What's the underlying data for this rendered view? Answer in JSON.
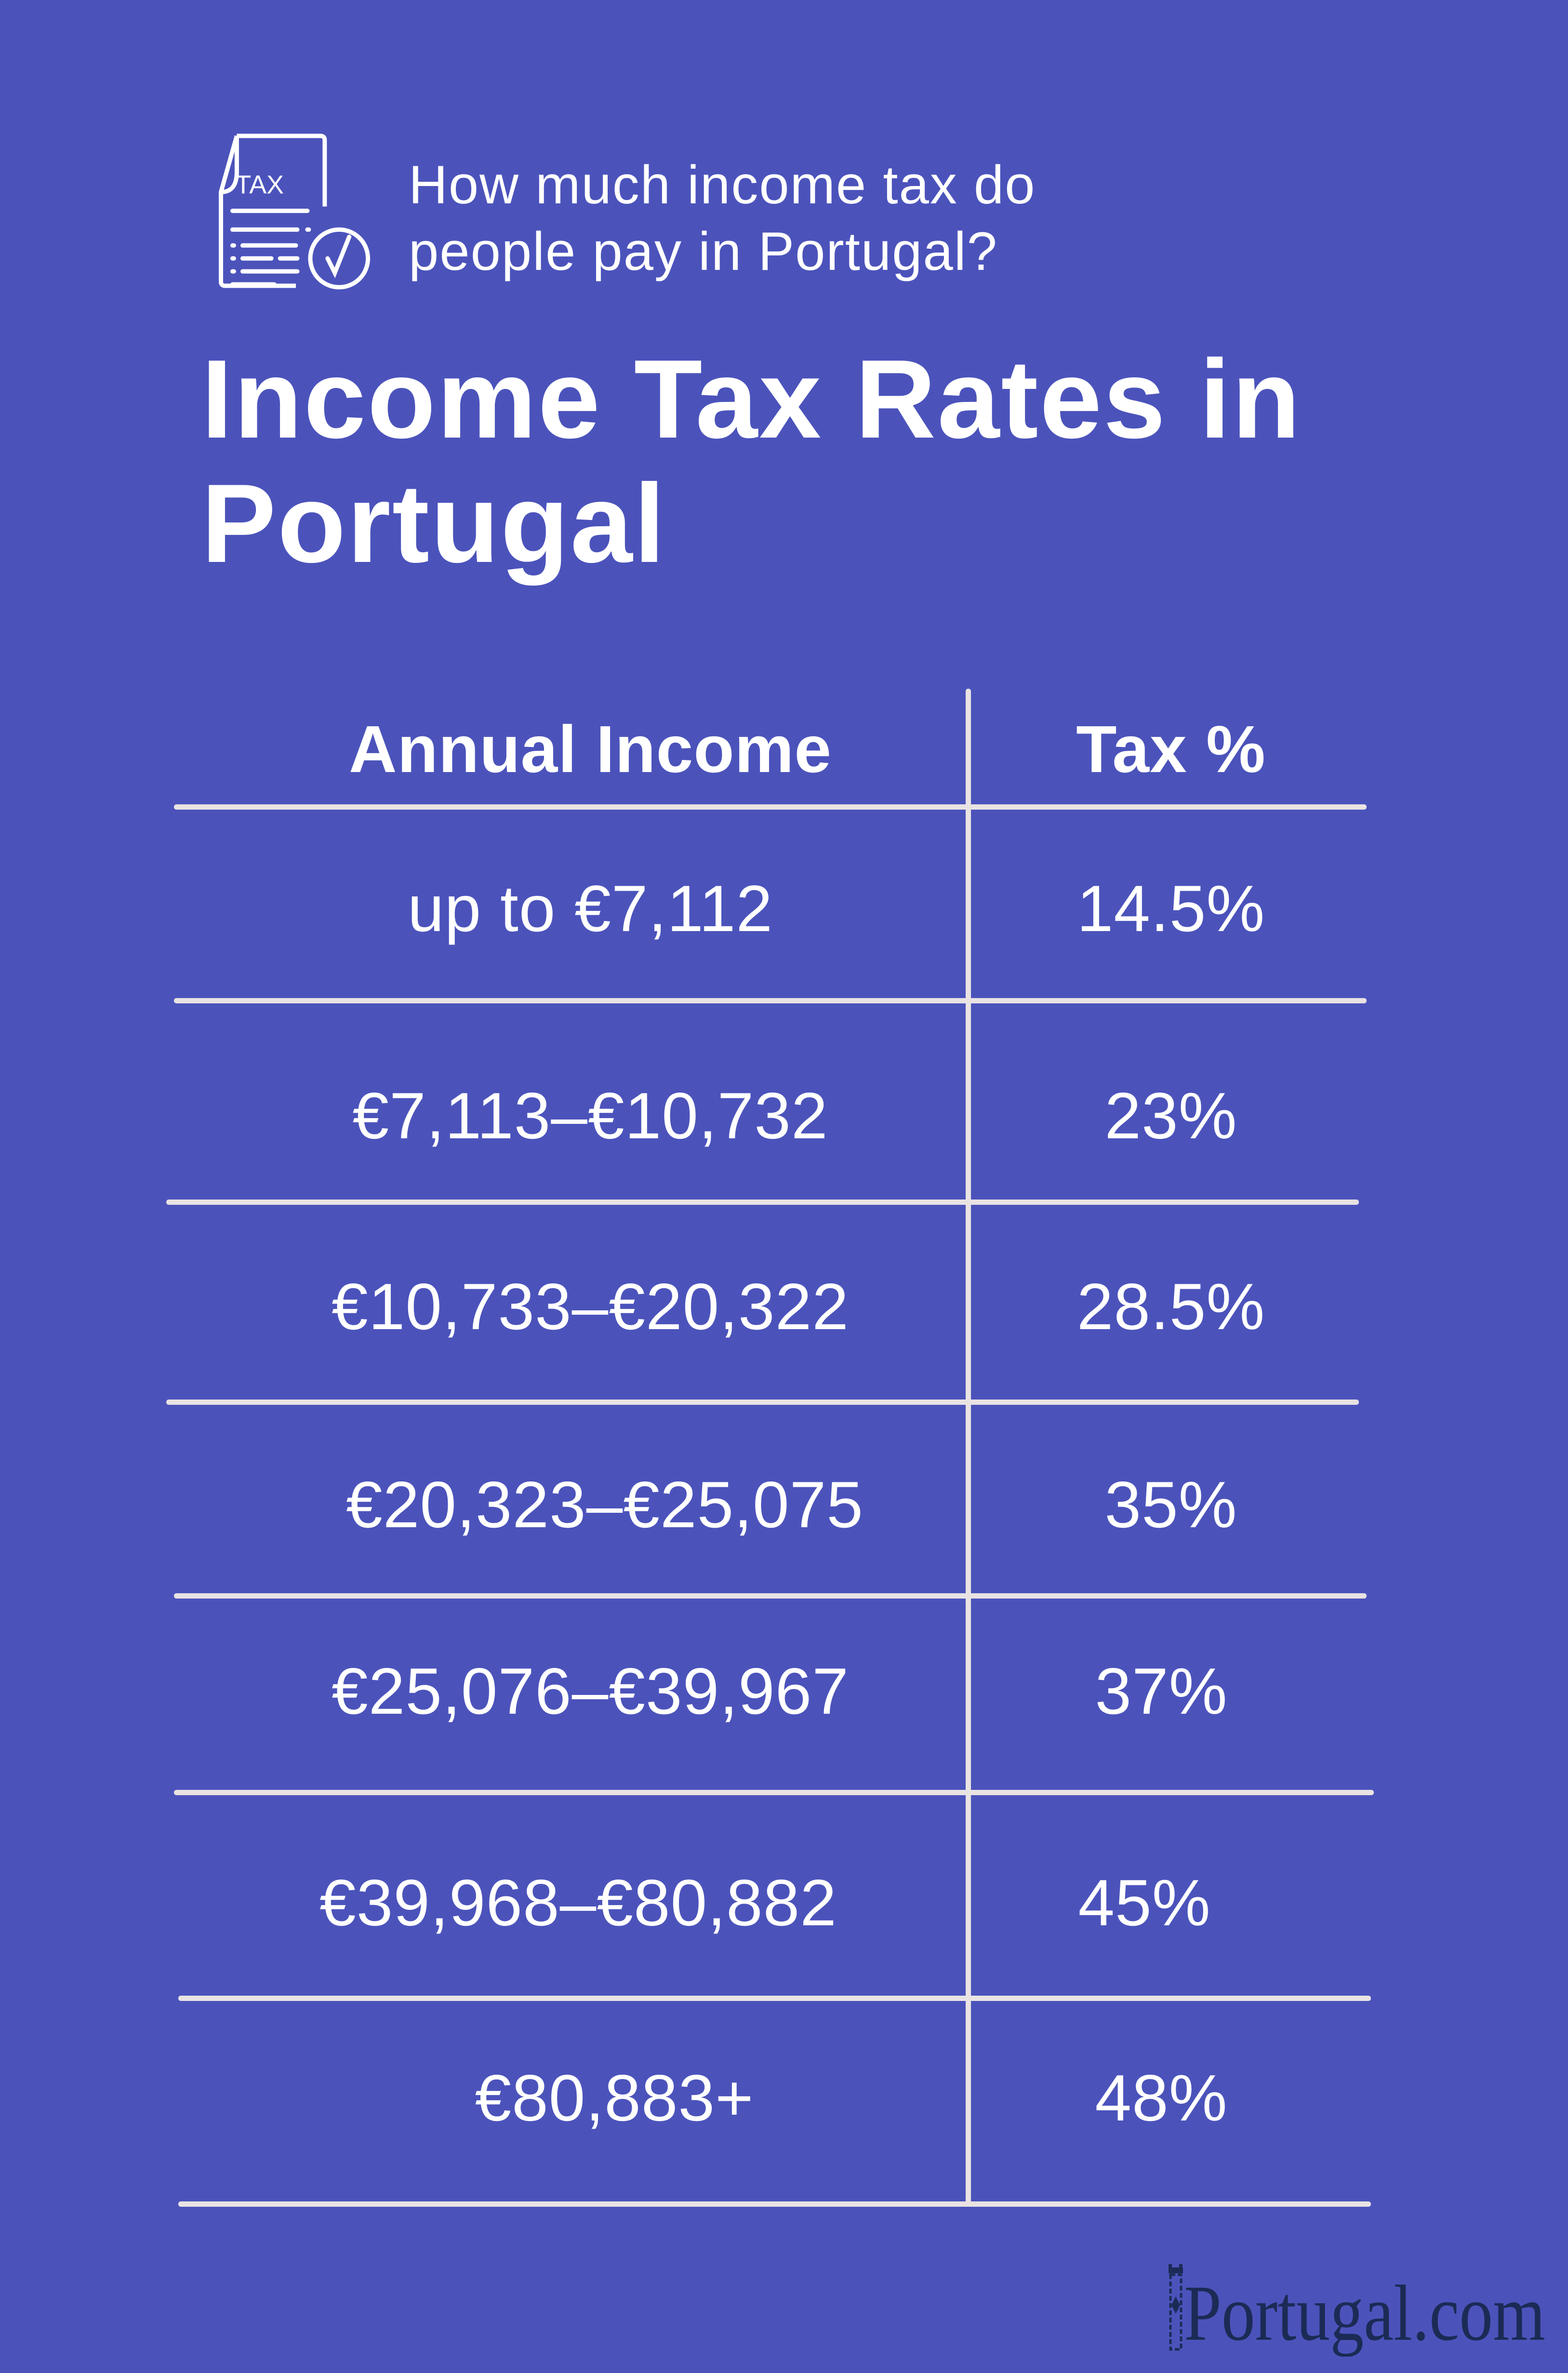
{
  "header": {
    "icon": "tax-document-check-icon",
    "icon_label": "TAX",
    "subtitle_line1": "How much income tax do",
    "subtitle_line2": "people pay in Portugal?",
    "title_line1": "Income Tax Rates in",
    "title_line2": "Portugal"
  },
  "table": {
    "columns": [
      "Annual Income",
      "Tax %"
    ],
    "rows": [
      {
        "income": "up to €7,112",
        "tax": "14.5%"
      },
      {
        "income": "€7,113–€10,732",
        "tax": "23%"
      },
      {
        "income": "€10,733–€20,322",
        "tax": "28.5%"
      },
      {
        "income": "€20,323–€25,075",
        "tax": "35%"
      },
      {
        "income": "€25,076–€39,967",
        "tax": "37%"
      },
      {
        "income": "€39,968–€80,882",
        "tax": "45%"
      },
      {
        "income": "€80,883+",
        "tax": "48%"
      }
    ]
  },
  "logo": {
    "text": "Portugal.com"
  },
  "colors": {
    "background": "#4b53bb",
    "text": "#ffffff",
    "lines": "#e9e3e3",
    "logo": "#1b2b55"
  }
}
